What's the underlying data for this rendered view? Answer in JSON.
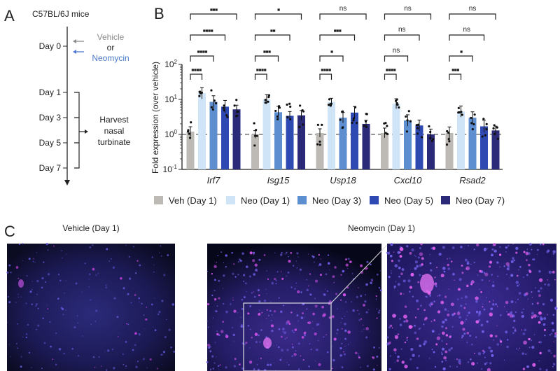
{
  "panels": {
    "a": {
      "label": "A",
      "title": "C57BL/6J mice",
      "days": [
        "Day 0",
        "Day 1",
        "Day 3",
        "Day 5",
        "Day 7"
      ],
      "treatment_vehicle": "Vehicle",
      "treatment_or": "or",
      "treatment_neomycin": "Neomycin",
      "harvest_lines": [
        "Harvest",
        "nasal",
        "turbinate"
      ],
      "vehicle_color": "#8a8a8a",
      "neomycin_color": "#4a78c8"
    },
    "b": {
      "label": "B"
    },
    "c": {
      "label": "C",
      "vehicle_title": "Vehicle (Day 1)",
      "neomycin_title": "Neomycin (Day 1)"
    }
  },
  "chart_data": {
    "type": "bar",
    "ylabel": "Fold expression (over vehicle)",
    "yscale": "log",
    "ylim": [
      0.1,
      100
    ],
    "yticks": [
      "10-1",
      "100",
      "101",
      "102"
    ],
    "reference_line": 1,
    "categories": [
      "Irf7",
      "Isg15",
      "Usp18",
      "Cxcl10",
      "Rsad2"
    ],
    "legend_position": "bottom",
    "series": [
      {
        "name": "Veh (Day 1)",
        "color": "#bdbab5",
        "values": [
          1.2,
          1.0,
          1.1,
          1.1,
          1.1
        ]
      },
      {
        "name": "Neo (Day 1)",
        "color": "#cfe4f7",
        "values": [
          15,
          10,
          8.5,
          7.5,
          4.5
        ]
      },
      {
        "name": "Neo (Day 3)",
        "color": "#5d8fd0",
        "values": [
          8.5,
          4.3,
          3.0,
          2.5,
          3.0
        ]
      },
      {
        "name": "Neo (Day 5)",
        "color": "#2f49b3",
        "values": [
          6.2,
          3.4,
          4.2,
          1.8,
          1.7
        ]
      },
      {
        "name": "Neo (Day 7)",
        "color": "#2a2a78",
        "values": [
          5.2,
          3.5,
          2.0,
          1.0,
          1.3
        ]
      }
    ],
    "significance_vs_vehicle": {
      "comparisons": [
        "Neo (Day 1)",
        "Neo (Day 3)",
        "Neo (Day 5)",
        "Neo (Day 7)"
      ],
      "Irf7": [
        "****",
        "****",
        "****",
        "***"
      ],
      "Isg15": [
        "****",
        "***",
        "**",
        "*"
      ],
      "Usp18": [
        "****",
        "*",
        "***",
        "ns"
      ],
      "Cxcl10": [
        "****",
        "ns",
        "ns",
        "ns"
      ],
      "Rsad2": [
        "***",
        "*",
        "ns",
        "ns"
      ]
    }
  }
}
